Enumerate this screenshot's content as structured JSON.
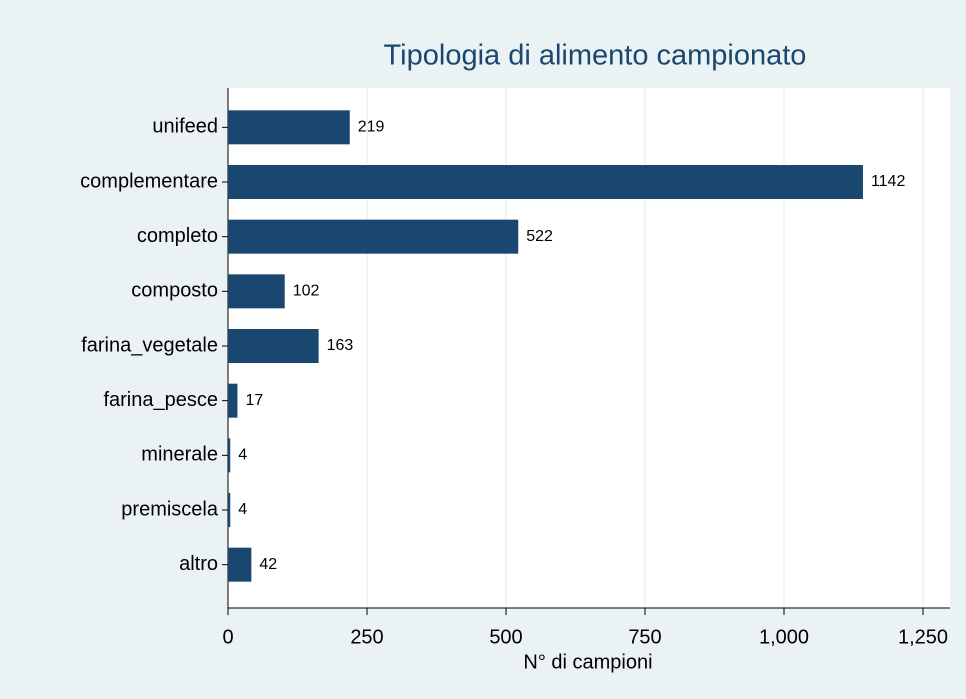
{
  "chart_data": {
    "type": "barh",
    "title": "Tipologia di alimento campionato",
    "x_label": "N° di campioni",
    "categories": [
      "unifeed",
      "complementare",
      "completo",
      "composto",
      "farina_vegetale",
      "farina_pesce",
      "minerale",
      "premiscela",
      "altro"
    ],
    "values": [
      219,
      1142,
      522,
      102,
      163,
      17,
      4,
      4,
      42
    ],
    "color": "#1a476f",
    "xlim": [
      0,
      1250
    ],
    "xticks": [
      0,
      250,
      500,
      750,
      {
        "value": 1000,
        "label": "1,000"
      },
      {
        "value": 1250,
        "label": "1,250"
      }
    ],
    "grid": true
  }
}
